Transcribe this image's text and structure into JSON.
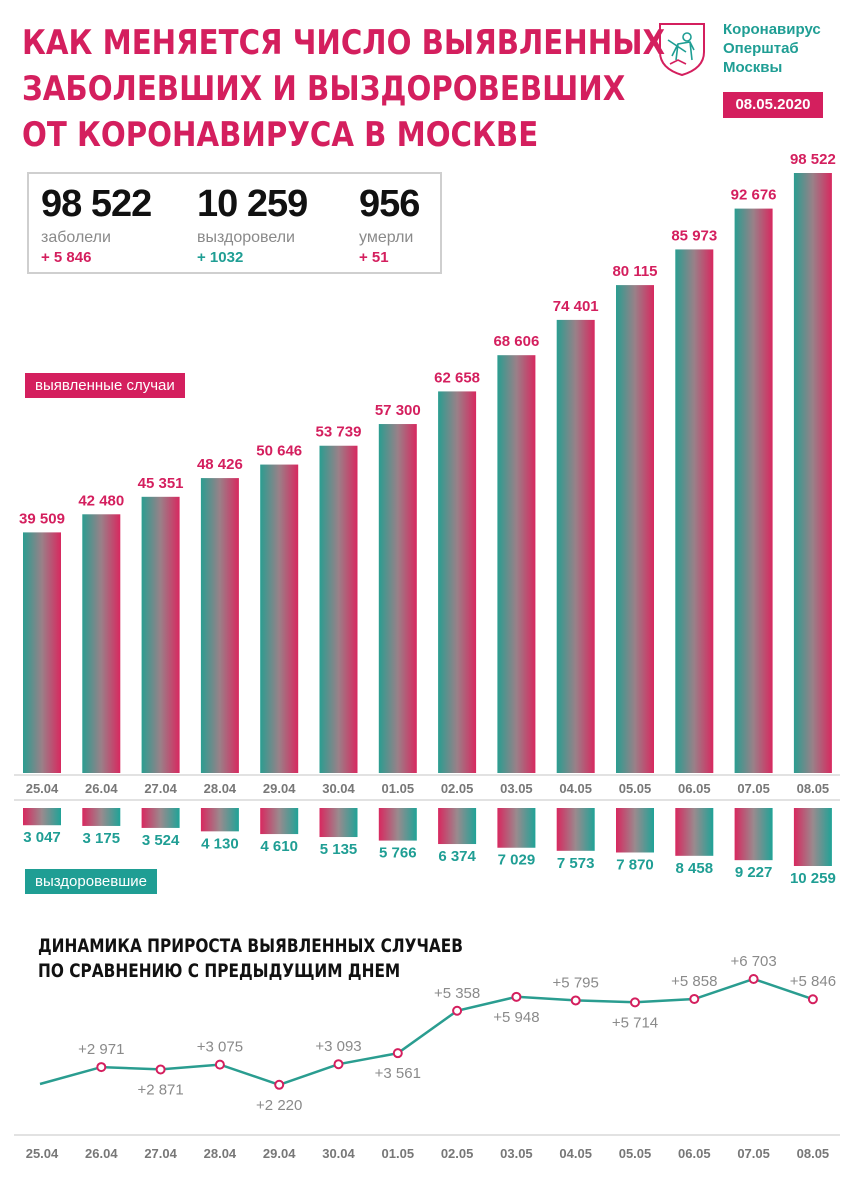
{
  "header": {
    "title_lines": [
      "КАК МЕНЯЕТСЯ ЧИСЛО ВЫЯВЛЕННЫХ",
      "ЗАБОЛЕВШИХ И ВЫЗДОРОВЕВШИХ",
      "ОТ КОРОНАВИРУСА В МОСКВЕ"
    ],
    "org_lines": [
      "Коронавирус",
      "Оперштаб",
      "Москвы"
    ],
    "date": "08.05.2020"
  },
  "summary": {
    "cases": {
      "value": "98 522",
      "label": "заболели",
      "delta": "+ 5 846"
    },
    "recovered": {
      "value": "10 259",
      "label": "выздоровели",
      "delta": "+ 1032"
    },
    "deaths": {
      "value": "956",
      "label": "умерли",
      "delta": "+ 51"
    }
  },
  "legend": {
    "cases": "выявленные случаи",
    "recovered": "выздоровевшие"
  },
  "colors": {
    "pink": "#d41f5e",
    "teal": "#1f9e94",
    "gray_label": "#8a8a8a"
  },
  "chart_data": [
    {
      "type": "bar",
      "series_name": "выявленные случаи",
      "categories": [
        "25.04",
        "26.04",
        "27.04",
        "28.04",
        "29.04",
        "30.04",
        "01.05",
        "02.05",
        "03.05",
        "04.05",
        "05.05",
        "06.05",
        "07.05",
        "08.05"
      ],
      "values": [
        39509,
        42480,
        45351,
        48426,
        50646,
        53739,
        57300,
        62658,
        68606,
        74401,
        80115,
        85973,
        92676,
        98522
      ],
      "labels": [
        "39 509",
        "42 480",
        "45 351",
        "48 426",
        "50 646",
        "53 739",
        "57 300",
        "62 658",
        "68 606",
        "74 401",
        "80 115",
        "85 973",
        "92 676",
        "98 522"
      ]
    },
    {
      "type": "bar",
      "series_name": "выздоровевшие",
      "categories": [
        "25.04",
        "26.04",
        "27.04",
        "28.04",
        "29.04",
        "30.04",
        "01.05",
        "02.05",
        "03.05",
        "04.05",
        "05.05",
        "06.05",
        "07.05",
        "08.05"
      ],
      "values": [
        3047,
        3175,
        3524,
        4130,
        4610,
        5135,
        5766,
        6374,
        7029,
        7573,
        7870,
        8458,
        9227,
        10259
      ],
      "labels": [
        "3 047",
        "3 175",
        "3 524",
        "4 130",
        "4 610",
        "5 135",
        "5 766",
        "6 374",
        "7 029",
        "7 573",
        "7 870",
        "8 458",
        "9 227",
        "10 259"
      ]
    },
    {
      "type": "line",
      "title_lines": [
        "ДИНАМИКА ПРИРОСТА ВЫЯВЛЕННЫХ СЛУЧАЕВ",
        "ПО СРАВНЕНИЮ С ПРЕДЫДУЩИМ ДНЕМ"
      ],
      "categories": [
        "25.04",
        "26.04",
        "27.04",
        "28.04",
        "29.04",
        "30.04",
        "01.05",
        "02.05",
        "03.05",
        "04.05",
        "05.05",
        "06.05",
        "07.05",
        "08.05"
      ],
      "values": [
        null,
        2971,
        2871,
        3075,
        2220,
        3093,
        3561,
        5358,
        5948,
        5795,
        5714,
        5858,
        6703,
        5846
      ],
      "labels": [
        "",
        "+2 971",
        "+2 871",
        "+3 075",
        "+2 220",
        "+3 093",
        "+3 561",
        "+5 358",
        "+5 948",
        "+5 795",
        "+5 714",
        "+5 858",
        "+6 703",
        "+5 846"
      ],
      "label_positions": [
        "",
        "above",
        "below",
        "above",
        "below",
        "above",
        "below",
        "above",
        "below",
        "above",
        "below",
        "above",
        "above",
        "above"
      ]
    }
  ]
}
